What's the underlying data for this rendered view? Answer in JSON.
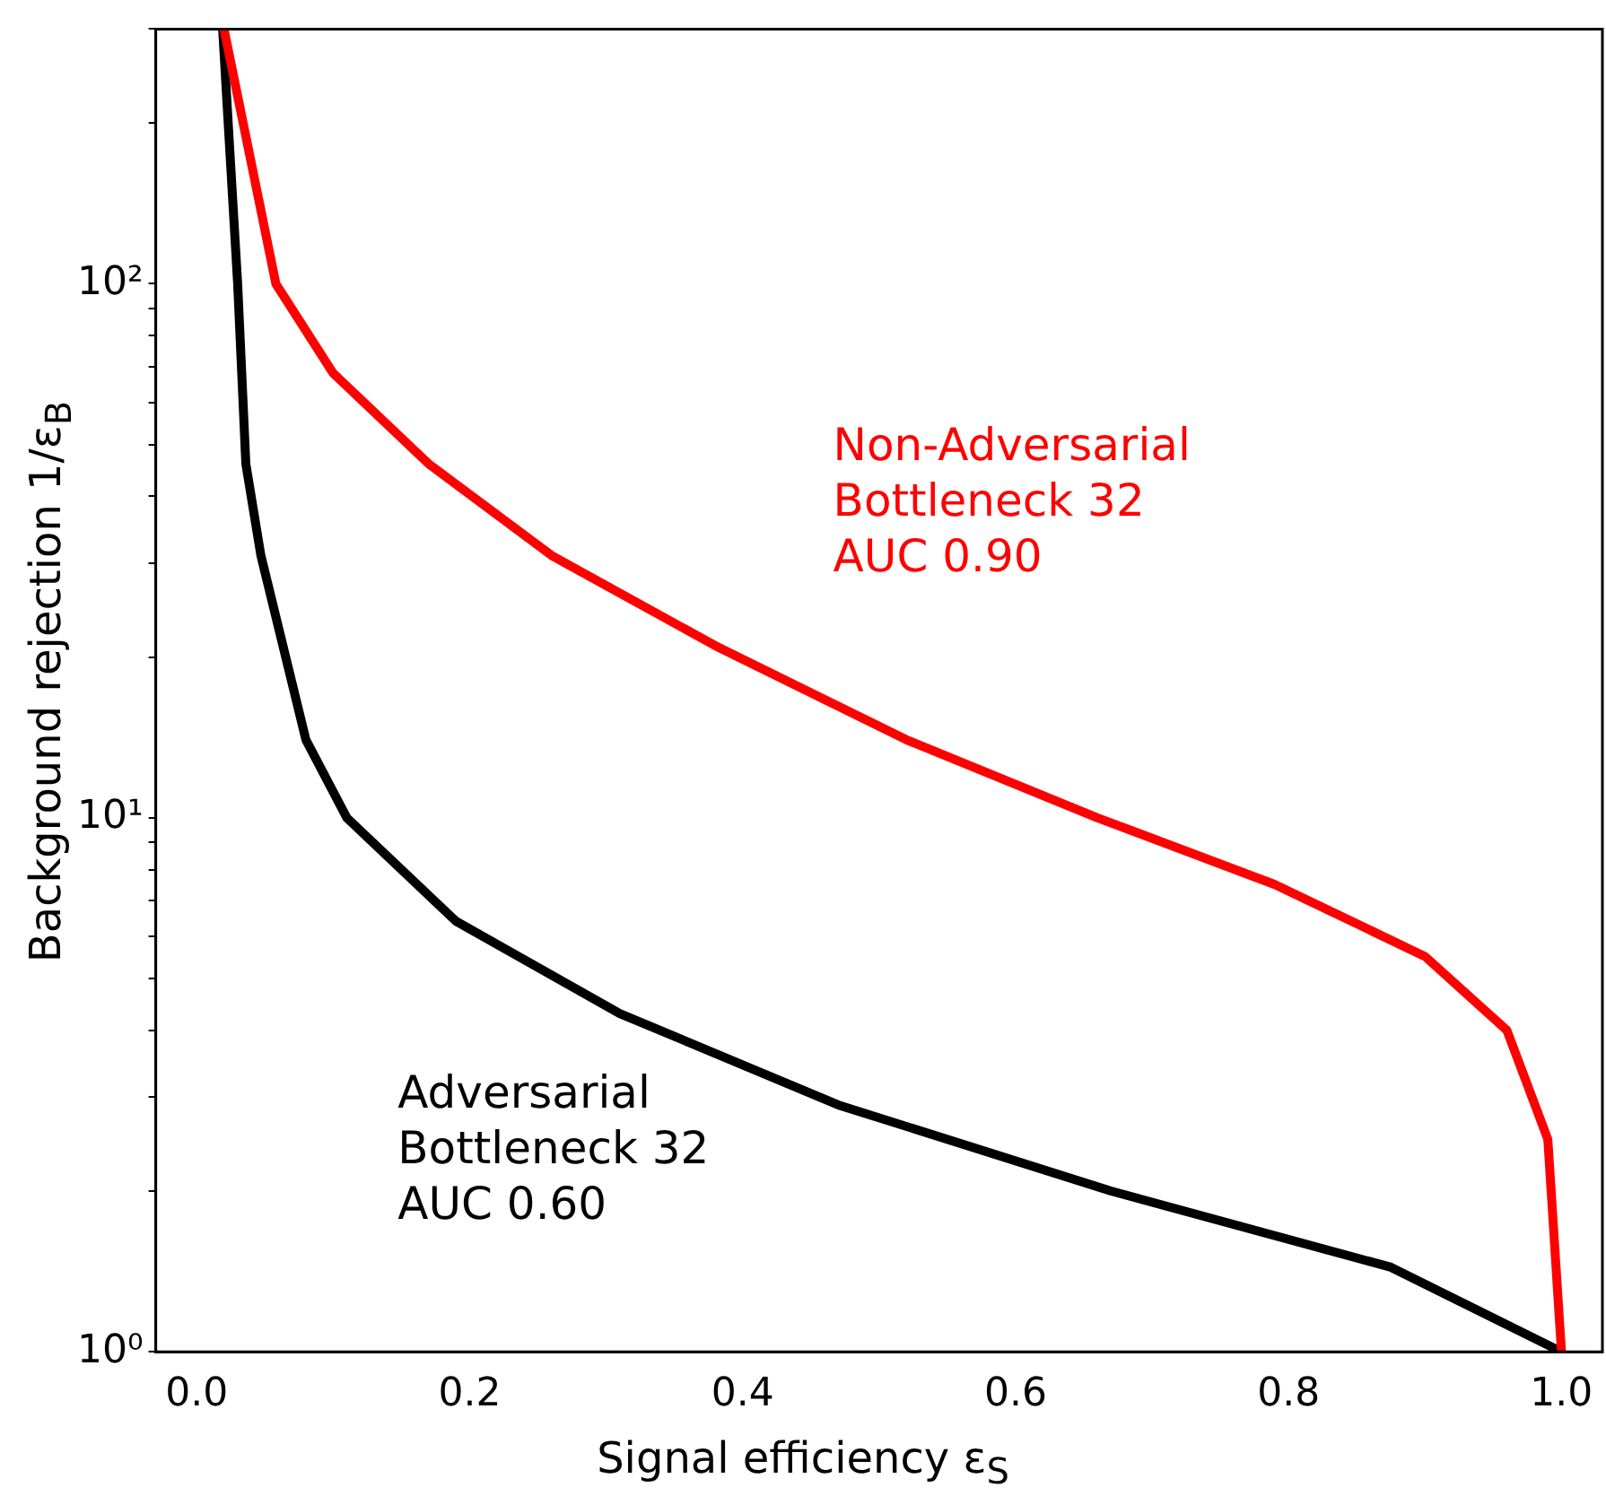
{
  "chart_data": {
    "type": "line",
    "xlabel": "Signal efficiency ε$_{S}$",
    "ylabel": "Background rejection 1/ε$_{B}$",
    "log": "y",
    "grid": false,
    "legend": false,
    "marker": "none",
    "line_style": "solid",
    "xlim": [
      -0.03,
      1.03
    ],
    "xticks": [
      {
        "value": 0,
        "label": "0.0"
      },
      {
        "value": 0.2,
        "label": "0.2"
      },
      {
        "value": 0.4,
        "label": "0.4"
      },
      {
        "value": 0.6,
        "label": "0.6"
      },
      {
        "value": 0.8,
        "label": "0.8"
      },
      {
        "value": 1,
        "label": "1.0"
      }
    ],
    "ylim": [
      1,
      300
    ],
    "yticks": [
      {
        "value": 1,
        "label": "10⁰"
      },
      {
        "value": 2,
        "label": null
      },
      {
        "value": 3,
        "label": null
      },
      {
        "value": 4,
        "label": null
      },
      {
        "value": 5,
        "label": null
      },
      {
        "value": 6,
        "label": null
      },
      {
        "value": 7,
        "label": null
      },
      {
        "value": 8,
        "label": null
      },
      {
        "value": 9,
        "label": null
      },
      {
        "value": 10,
        "label": "10¹"
      },
      {
        "value": 20,
        "label": null
      },
      {
        "value": 30,
        "label": null
      },
      {
        "value": 40,
        "label": null
      },
      {
        "value": 50,
        "label": null
      },
      {
        "value": 60,
        "label": null
      },
      {
        "value": 70,
        "label": null
      },
      {
        "value": 80,
        "label": null
      },
      {
        "value": 90,
        "label": null
      },
      {
        "value": 100,
        "label": "10²"
      },
      {
        "value": 200,
        "label": null
      },
      {
        "value": 300,
        "label": null
      }
    ],
    "series": [
      {
        "name": "Non-Adversarial\nBottleneck 32\nAUC 0.90",
        "color": "#ff0000",
        "x": [
          0.02,
          0.058,
          0.1,
          0.17,
          0.26,
          0.38,
          0.52,
          0.66,
          0.79,
          0.9,
          0.96,
          0.99,
          1.0
        ],
        "values": [
          300,
          100,
          68,
          46,
          31,
          21,
          14,
          10,
          7.5,
          5.5,
          4,
          2.5,
          1
        ]
      },
      {
        "name": "Adversarial\nBottleneck 32\nAUC 0.60",
        "color": "#000000",
        "x": [
          0.019,
          0.03,
          0.036,
          0.047,
          0.08,
          0.11,
          0.19,
          0.31,
          0.47,
          0.67,
          0.875,
          1.0
        ],
        "values": [
          300,
          100,
          46,
          31,
          14,
          10,
          6.4,
          4.3,
          2.9,
          2,
          1.44,
          1
        ]
      }
    ]
  }
}
